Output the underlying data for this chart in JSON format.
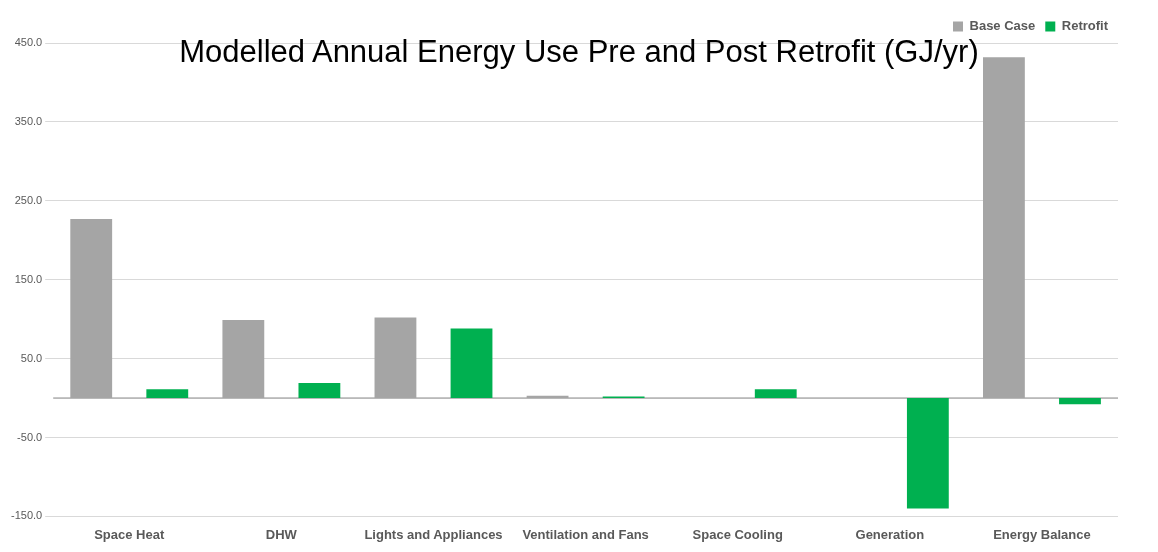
{
  "chart_data": {
    "type": "bar",
    "title": "Modelled Annual Energy Use Pre and Post Retrofit  (GJ/yr)",
    "categories": [
      "Space Heat",
      "DHW",
      "Lights and Appliances",
      "Ventilation and Fans",
      "Space Cooling",
      "Generation",
      "Energy Balance"
    ],
    "series": [
      {
        "name": "Base Case",
        "color": "#a5a5a5",
        "values": [
          227,
          99,
          102,
          3,
          null,
          null,
          432
        ]
      },
      {
        "name": "Retrofit",
        "color": "#00b050",
        "values": [
          11,
          19,
          88,
          2,
          11,
          -140,
          -8
        ]
      }
    ],
    "ylim": [
      -150,
      450
    ],
    "yticks": [
      {
        "value": -150,
        "label": "-150.0"
      },
      {
        "value": -50,
        "label": "-50.0"
      },
      {
        "value": 50,
        "label": "50.0"
      },
      {
        "value": 150,
        "label": "150.0"
      },
      {
        "value": 250,
        "label": "250.0"
      },
      {
        "value": 350,
        "label": "350.0"
      },
      {
        "value": 450,
        "label": "450.0"
      }
    ],
    "grid": "y",
    "legend": "top right"
  }
}
